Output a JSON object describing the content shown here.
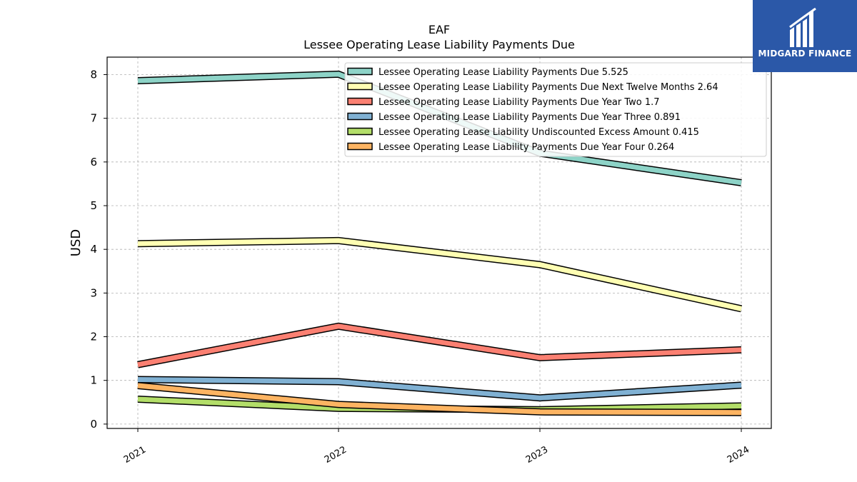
{
  "brand": {
    "name": "MIDGARD FINANCE",
    "bg_color": "#2b58a8",
    "logo_icon": "midgard-logo-mark"
  },
  "chart_data": {
    "type": "line",
    "title": "EAF",
    "subtitle": "Lessee Operating Lease Liability Payments Due",
    "xlabel": "",
    "ylabel": "USD",
    "categories": [
      "2021",
      "2022",
      "2023",
      "2024"
    ],
    "ylim": [
      -0.1,
      8.4
    ],
    "yticks": [
      0,
      1,
      2,
      3,
      4,
      5,
      6,
      7,
      8
    ],
    "grid": true,
    "legend_position": "top-right",
    "series": [
      {
        "name": "Lessee Operating Lease Liability Payments Due",
        "legend_label": "Lessee Operating Lease Liability Payments Due  5.525",
        "color": "#8dd3c7",
        "values": [
          7.86,
          8.01,
          6.2,
          5.525
        ]
      },
      {
        "name": "Lessee Operating Lease Liability Payments Due Next Twelve Months",
        "legend_label": "Lessee Operating Lease Liability Payments Due Next Twelve Months  2.64",
        "color": "#ffffb3",
        "values": [
          4.13,
          4.2,
          3.65,
          2.64
        ]
      },
      {
        "name": "Lessee Operating Lease Liability Payments Due Year Two",
        "legend_label": "Lessee Operating Lease Liability Payments Due Year Two  1.7",
        "color": "#fb8072",
        "values": [
          1.36,
          2.24,
          1.52,
          1.7
        ]
      },
      {
        "name": "Lessee Operating Lease Liability Payments Due Year Three",
        "legend_label": "Lessee Operating Lease Liability Payments Due Year Three  0.891",
        "color": "#80b1d3",
        "values": [
          1.02,
          0.97,
          0.6,
          0.891
        ]
      },
      {
        "name": "Lessee Operating Lease Liability Undiscounted Excess Amount",
        "legend_label": "Lessee Operating Lease Liability Undiscounted Excess Amount  0.415",
        "color": "#b3de69",
        "values": [
          0.57,
          0.36,
          0.33,
          0.415
        ]
      },
      {
        "name": "Lessee Operating Lease Liability Payments Due Year Four",
        "legend_label": "Lessee Operating Lease Liability Payments Due Year Four  0.264",
        "color": "#fdb462",
        "values": [
          0.88,
          0.45,
          0.28,
          0.264
        ]
      }
    ]
  }
}
